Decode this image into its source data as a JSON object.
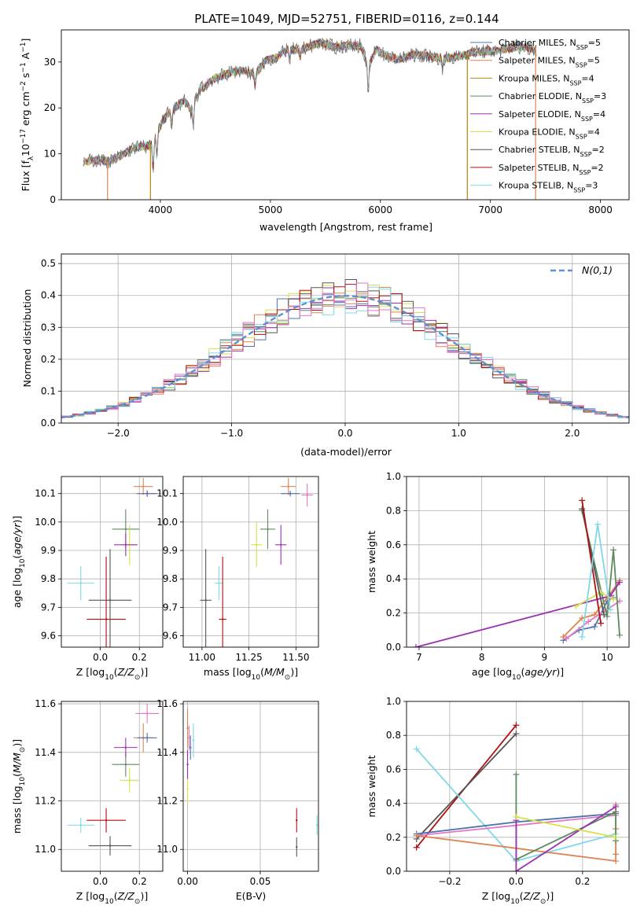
{
  "title": "PLATE=1049, MJD=52751, FIBERID=0116, z=0.144",
  "chart_data": [
    {
      "id": "p1",
      "type": "line",
      "title": "PLATE=1049, MJD=52751, FIBERID=0116, z=0.144",
      "xlabel": "wavelength [Angstrom, rest frame]",
      "ylabel": "Flux [f_λ 10^-17 erg cm^-2 s^-1 A^-1]",
      "xlim": [
        3100,
        8260
      ],
      "ylim": [
        0,
        37
      ],
      "xticks": [
        4000,
        5000,
        6000,
        7000,
        8000
      ],
      "yticks": [
        0,
        10,
        20,
        30
      ],
      "grid": false,
      "legend": "top-right",
      "spectrum": {
        "x": [
          3320,
          3380,
          3450,
          3520,
          3600,
          3680,
          3760,
          3840,
          3900,
          3960,
          4020,
          4080,
          4150,
          4220,
          4280,
          4340,
          4400,
          4480,
          4560,
          4650,
          4760,
          4860,
          4960,
          5060,
          5160,
          5260,
          5360,
          5470,
          5580,
          5700,
          5820,
          5890,
          5960,
          6060,
          6180,
          6300,
          6440,
          6570,
          6700,
          6860,
          6980,
          7060,
          7160,
          7240,
          7320,
          7400
        ],
        "y": [
          8.3,
          8.6,
          8.6,
          8.3,
          9,
          10.2,
          11.3,
          11.6,
          11.7,
          14,
          17,
          19.1,
          20.3,
          21.8,
          19,
          24,
          24.7,
          26.3,
          27,
          27.8,
          28.2,
          27.2,
          30.3,
          31,
          33,
          32.5,
          33.5,
          34.2,
          33.2,
          33.6,
          33.6,
          28.8,
          32.8,
          31.2,
          30.6,
          31.6,
          31.3,
          30.7,
          31.1,
          32.2,
          32.4,
          32.4,
          33,
          33.4,
          33.2,
          32.8
        ]
      },
      "series": [
        {
          "name": "Chabrier MILES",
          "nssp": "5",
          "color": "#4c72b0"
        },
        {
          "name": "Salpeter MILES",
          "nssp": "5",
          "color": "#dd8452"
        },
        {
          "name": "Kroupa MILES",
          "nssp": "4",
          "color": "#b8860b"
        },
        {
          "name": "Chabrier ELODIE",
          "nssp": "3",
          "color": "#5d8b5d"
        },
        {
          "name": "Salpeter ELODIE",
          "nssp": "4",
          "color": "#9b30b0"
        },
        {
          "name": "Kroupa ELODIE",
          "nssp": "4",
          "color": "#d8e04c"
        },
        {
          "name": "Chabrier STELIB",
          "nssp": "2",
          "color": "#555555"
        },
        {
          "name": "Salpeter STELIB",
          "nssp": "2",
          "color": "#b01010"
        },
        {
          "name": "Kroupa STELIB",
          "nssp": "3",
          "color": "#7fd8e6"
        }
      ],
      "dropouts": [
        {
          "x": 3520,
          "color": "#dd8452"
        },
        {
          "x": 3910,
          "color": "#b8860b"
        },
        {
          "x": 6790,
          "color": "#b8860b"
        },
        {
          "x": 7410,
          "color": "#dd8452"
        }
      ]
    },
    {
      "id": "p2",
      "type": "line",
      "xlabel": "(data-model)/error",
      "ylabel": "Normed distribution",
      "xlim": [
        -2.5,
        2.5
      ],
      "ylim": [
        0,
        0.53
      ],
      "xticks": [
        -2,
        -1,
        0,
        1,
        2
      ],
      "yticks": [
        0,
        0.1,
        0.2,
        0.3,
        0.4,
        0.5
      ],
      "grid": true,
      "legend": "top-right",
      "legend_label": "N(0,1)",
      "bin_width": 0.1,
      "hist_colors": [
        "#4c72b0",
        "#dd8452",
        "#5d8b5d",
        "#9b30b0",
        "#d8e04c",
        "#555555",
        "#b01010",
        "#7fd8e6",
        "#e377c2"
      ]
    },
    {
      "id": "p3",
      "type": "scatter",
      "xlabel": "Z [log10(Z/Z⊙)]",
      "ylabel": "age  [log10(age/yr)]",
      "xlim": [
        -0.2,
        0.32
      ],
      "ylim": [
        9.56,
        10.16
      ],
      "xticks": [
        0.0,
        0.2
      ],
      "yticks": [
        9.6,
        9.7,
        9.8,
        9.9,
        10.0,
        10.1
      ],
      "grid": true,
      "points": [
        {
          "x": 0.22,
          "y": 10.125,
          "ex": 0.05,
          "ey": 0.03,
          "color": "#dd8452"
        },
        {
          "x": 0.24,
          "y": 10.1,
          "ex": 0.06,
          "ey": 0.012,
          "color": "#e377c2"
        },
        {
          "x": 0.24,
          "y": 10.1,
          "ex": 0.05,
          "ey": 0.01,
          "color": "#4c72b0"
        },
        {
          "x": 0.13,
          "y": 9.975,
          "ex": 0.07,
          "ey": 0.07,
          "color": "#5d8b5d"
        },
        {
          "x": 0.15,
          "y": 9.92,
          "ex": 0.04,
          "ey": 0.07,
          "color": "#d8e04c"
        },
        {
          "x": 0.13,
          "y": 9.92,
          "ex": 0.06,
          "ey": 0.04,
          "color": "#9b30b0"
        },
        {
          "x": -0.1,
          "y": 9.785,
          "ex": 0.07,
          "ey": 0.06,
          "color": "#7fd8e6"
        },
        {
          "x": 0.05,
          "y": 9.725,
          "ex": 0.11,
          "ey": 0.18,
          "color": "#555555"
        },
        {
          "x": 0.03,
          "y": 9.658,
          "ex": 0.1,
          "ey": 0.22,
          "color": "#b01010"
        }
      ]
    },
    {
      "id": "p4",
      "type": "scatter",
      "xlabel": "mass [log10(M/M⊙)]",
      "ylabel": "",
      "xlim": [
        10.9,
        11.62
      ],
      "ylim": [
        9.56,
        10.16
      ],
      "xticks": [
        11.0,
        11.25,
        11.5
      ],
      "yticks": [
        9.6,
        9.7,
        9.8,
        9.9,
        10.0,
        10.1
      ],
      "grid": true,
      "points": [
        {
          "x": 11.46,
          "y": 10.125,
          "ex": 0.04,
          "ey": 0.03,
          "color": "#dd8452"
        },
        {
          "x": 11.56,
          "y": 10.095,
          "ex": 0.03,
          "ey": 0.04,
          "color": "#e377c2"
        },
        {
          "x": 11.47,
          "y": 10.1,
          "ex": 0.05,
          "ey": 0.01,
          "color": "#4c72b0"
        },
        {
          "x": 11.35,
          "y": 9.975,
          "ex": 0.04,
          "ey": 0.07,
          "color": "#5d8b5d"
        },
        {
          "x": 11.29,
          "y": 9.92,
          "ex": 0.03,
          "ey": 0.08,
          "color": "#d8e04c"
        },
        {
          "x": 11.42,
          "y": 9.92,
          "ex": 0.03,
          "ey": 0.07,
          "color": "#9b30b0"
        },
        {
          "x": 11.09,
          "y": 9.785,
          "ex": 0.02,
          "ey": 0.06,
          "color": "#7fd8e6"
        },
        {
          "x": 11.02,
          "y": 9.725,
          "ex": 0.03,
          "ey": 0.18,
          "color": "#555555"
        },
        {
          "x": 11.11,
          "y": 9.658,
          "ex": 0.02,
          "ey": 0.22,
          "color": "#b01010"
        }
      ]
    },
    {
      "id": "p5",
      "type": "line",
      "xlabel": "age  [log10(age/yr)]",
      "ylabel": "mass weight",
      "xlim": [
        6.8,
        10.35
      ],
      "ylim": [
        0,
        1
      ],
      "xticks": [
        7,
        8,
        9,
        10
      ],
      "yticks": [
        0,
        0.2,
        0.4,
        0.6,
        0.8,
        1.0
      ],
      "grid": true,
      "series": [
        {
          "color": "#4c72b0",
          "x": [
            9.3,
            9.55,
            9.8,
            10.0,
            10.1
          ],
          "y": [
            0.04,
            0.1,
            0.12,
            0.27,
            0.29
          ]
        },
        {
          "color": "#dd8452",
          "x": [
            9.3,
            9.6,
            9.8,
            10.0,
            10.2
          ],
          "y": [
            0.06,
            0.17,
            0.19,
            0.29,
            0.39
          ]
        },
        {
          "color": "#e377c2",
          "x": [
            9.35,
            9.7,
            10.0,
            10.2
          ],
          "y": [
            0.05,
            0.15,
            0.22,
            0.27
          ]
        },
        {
          "color": "#5d8b5d",
          "x": [
            9.6,
            10.0,
            10.1,
            10.2
          ],
          "y": [
            0.8,
            0.18,
            0.57,
            0.07
          ]
        },
        {
          "color": "#9b30b0",
          "x": [
            6.95,
            10.05,
            10.2
          ],
          "y": [
            0.0,
            0.3,
            0.38
          ]
        },
        {
          "color": "#d8e04c",
          "x": [
            9.5,
            9.9,
            10.1
          ],
          "y": [
            0.24,
            0.32,
            0.28
          ]
        },
        {
          "color": "#555555",
          "x": [
            9.6,
            9.95
          ],
          "y": [
            0.81,
            0.19
          ]
        },
        {
          "color": "#b01010",
          "x": [
            9.6,
            9.9
          ],
          "y": [
            0.86,
            0.14
          ]
        },
        {
          "color": "#7fd8e6",
          "x": [
            9.6,
            9.85,
            10.05
          ],
          "y": [
            0.06,
            0.72,
            0.22
          ]
        }
      ]
    },
    {
      "id": "p6",
      "type": "scatter",
      "xlabel": "Z [log10(Z/Z⊙)]",
      "ylabel": "mass [log10(M/M⊙)]",
      "xlim": [
        -0.2,
        0.32
      ],
      "ylim": [
        10.91,
        11.61
      ],
      "xticks": [
        0.0,
        0.2
      ],
      "yticks": [
        11.0,
        11.2,
        11.4,
        11.6
      ],
      "grid": true,
      "points": [
        {
          "x": 0.22,
          "y": 11.46,
          "ex": 0.05,
          "ey": 0.06,
          "color": "#dd8452"
        },
        {
          "x": 0.24,
          "y": 11.56,
          "ex": 0.06,
          "ey": 0.04,
          "color": "#e377c2"
        },
        {
          "x": 0.24,
          "y": 11.46,
          "ex": 0.05,
          "ey": 0.02,
          "color": "#4c72b0"
        },
        {
          "x": 0.13,
          "y": 11.35,
          "ex": 0.07,
          "ey": 0.05,
          "color": "#5d8b5d"
        },
        {
          "x": 0.15,
          "y": 11.285,
          "ex": 0.05,
          "ey": 0.05,
          "color": "#d8e04c"
        },
        {
          "x": 0.13,
          "y": 11.42,
          "ex": 0.06,
          "ey": 0.04,
          "color": "#9b30b0"
        },
        {
          "x": -0.1,
          "y": 11.1,
          "ex": 0.07,
          "ey": 0.03,
          "color": "#7fd8e6"
        },
        {
          "x": 0.05,
          "y": 11.015,
          "ex": 0.11,
          "ey": 0.04,
          "color": "#555555"
        },
        {
          "x": 0.03,
          "y": 11.12,
          "ex": 0.1,
          "ey": 0.05,
          "color": "#b01010"
        }
      ]
    },
    {
      "id": "p7",
      "type": "scatter",
      "xlabel": "E(B-V)",
      "ylabel": "",
      "xlim": [
        -0.003,
        0.09
      ],
      "ylim": [
        10.91,
        11.61
      ],
      "xticks": [
        0.0,
        0.05
      ],
      "yticks": [
        11.0,
        11.2,
        11.4,
        11.6
      ],
      "grid": true,
      "points": [
        {
          "x": 0.0,
          "y": 11.5,
          "ey": 0.08,
          "color": "#dd8452"
        },
        {
          "x": 0.0,
          "y": 11.25,
          "ey": 0.06,
          "color": "#d8e04c"
        },
        {
          "x": 0.002,
          "y": 11.42,
          "ey": 0.05,
          "color": "#4c72b0"
        },
        {
          "x": 0.001,
          "y": 11.46,
          "ey": 0.05,
          "color": "#e377c2"
        },
        {
          "x": 0.0,
          "y": 11.35,
          "ey": 0.06,
          "color": "#9b30b0"
        },
        {
          "x": 0.004,
          "y": 11.45,
          "ey": 0.07,
          "color": "#7fd8e6"
        },
        {
          "x": 0.075,
          "y": 11.12,
          "ey": 0.05,
          "color": "#b01010"
        },
        {
          "x": 0.075,
          "y": 11.01,
          "ey": 0.04,
          "color": "#555555"
        },
        {
          "x": 0.089,
          "y": 11.1,
          "ey": 0.04,
          "color": "#7fd8e6"
        }
      ]
    },
    {
      "id": "p8",
      "type": "line",
      "xlabel": "Z [log10(Z/Z⊙)]",
      "ylabel": "mass weight",
      "xlim": [
        -0.33,
        0.34
      ],
      "ylim": [
        0,
        1
      ],
      "xticks": [
        -0.2,
        0.0,
        0.2
      ],
      "yticks": [
        0,
        0.2,
        0.4,
        0.6,
        0.8,
        1.0
      ],
      "grid": true,
      "series": [
        {
          "color": "#b01010",
          "x": [
            -0.3,
            0.0
          ],
          "y": [
            0.14,
            0.86
          ]
        },
        {
          "color": "#555555",
          "x": [
            -0.3,
            0.0
          ],
          "y": [
            0.19,
            0.81
          ]
        },
        {
          "color": "#7fd8e6",
          "x": [
            -0.3,
            0.0,
            0.3
          ],
          "y": [
            0.72,
            0.06,
            0.22
          ]
        },
        {
          "color": "#4c72b0",
          "x": [
            -0.3,
            0.0,
            0.3
          ],
          "y": [
            0.22,
            0.29,
            0.34
          ]
        },
        {
          "color": "#e377c2",
          "x": [
            -0.3,
            0.3
          ],
          "y": [
            0.21,
            0.33
          ]
        },
        {
          "color": "#dd8452",
          "x": [
            -0.3,
            0.3,
            0.3,
            0.3,
            0.3
          ],
          "y": [
            0.21,
            0.06,
            0.39,
            0.25,
            0.1
          ]
        },
        {
          "color": "#5d8b5d",
          "x": [
            0.0,
            0.0,
            0.3,
            0.3
          ],
          "y": [
            0.57,
            0.07,
            0.35,
            0.18
          ]
        },
        {
          "color": "#9b30b0",
          "x": [
            0.0,
            0.0,
            0.3
          ],
          "y": [
            0.3,
            0.0,
            0.38
          ]
        },
        {
          "color": "#d8e04c",
          "x": [
            0.0,
            0.3
          ],
          "y": [
            0.32,
            0.2
          ]
        }
      ]
    }
  ]
}
